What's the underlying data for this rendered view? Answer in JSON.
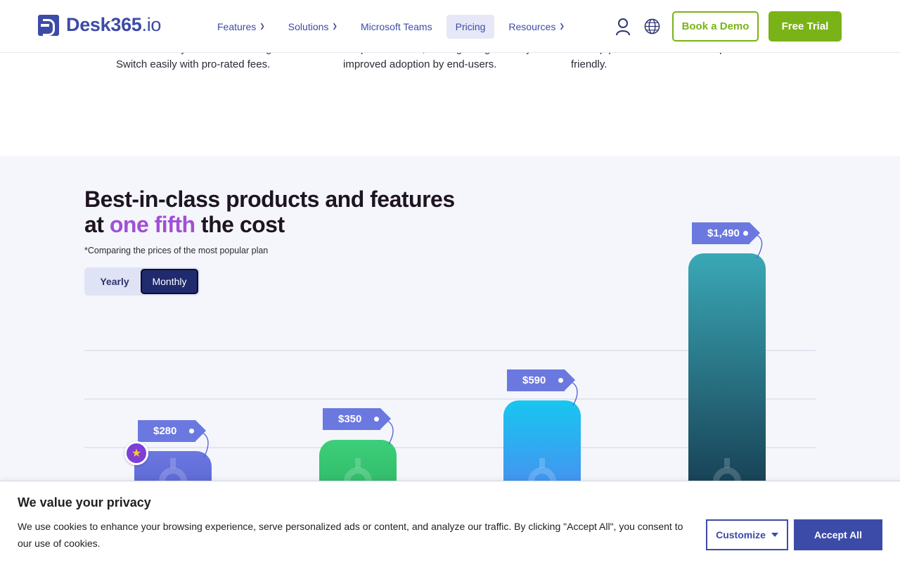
{
  "nav": {
    "logo_main": "Desk365",
    "logo_suffix": ".io",
    "menu": [
      {
        "label": "Features",
        "has_dropdown": true
      },
      {
        "label": "Solutions",
        "has_dropdown": true
      },
      {
        "label": "Microsoft Teams",
        "has_dropdown": false
      },
      {
        "label": "Pricing",
        "has_dropdown": false,
        "active": true
      },
      {
        "label": "Resources",
        "has_dropdown": true
      }
    ],
    "user_icon": "user-icon",
    "globe_icon": "globe-icon",
    "book_demo": "Book a Demo",
    "free_trial": "Free Trial"
  },
  "features_text": {
    "col1": [
      "can effortlessly add or remove agents.",
      "Switch easily with pro-rated fees."
    ],
    "col2": [
      "adoption barriers, leading to significantly",
      "improved adoption by end-users."
    ],
    "col3": [
      "a setup process that is both simple and user-",
      "friendly."
    ]
  },
  "pricing": {
    "headline_line1": "Best-in-class products and features",
    "headline_at": "at ",
    "headline_accent": "one fifth",
    "headline_rest": " the cost",
    "note": "*Comparing the prices of the most popular plan",
    "toggle": {
      "yearly": "Yearly",
      "monthly": "Monthly",
      "selected": "Monthly"
    },
    "bars": [
      {
        "price": "$280",
        "colors": [
          "#6b78e0",
          "#5a66d4"
        ],
        "highlighted": true
      },
      {
        "price": "$350",
        "colors": [
          "#3dcf7a",
          "#2fb868"
        ]
      },
      {
        "price": "$590",
        "colors": [
          "#17c6f0",
          "#4a8ef0"
        ]
      },
      {
        "price": "$1,490",
        "colors": [
          "#3aa8b6",
          "#173e52"
        ]
      }
    ],
    "star_icon": "star-icon"
  },
  "cookie": {
    "title": "We value your privacy",
    "text": "We use cookies to enhance your browsing experience, serve personalized ads or content, and analyze our traffic. By clicking \"Accept All\", you consent to our use of cookies.",
    "customize": "Customize",
    "accept": "Accept All"
  }
}
